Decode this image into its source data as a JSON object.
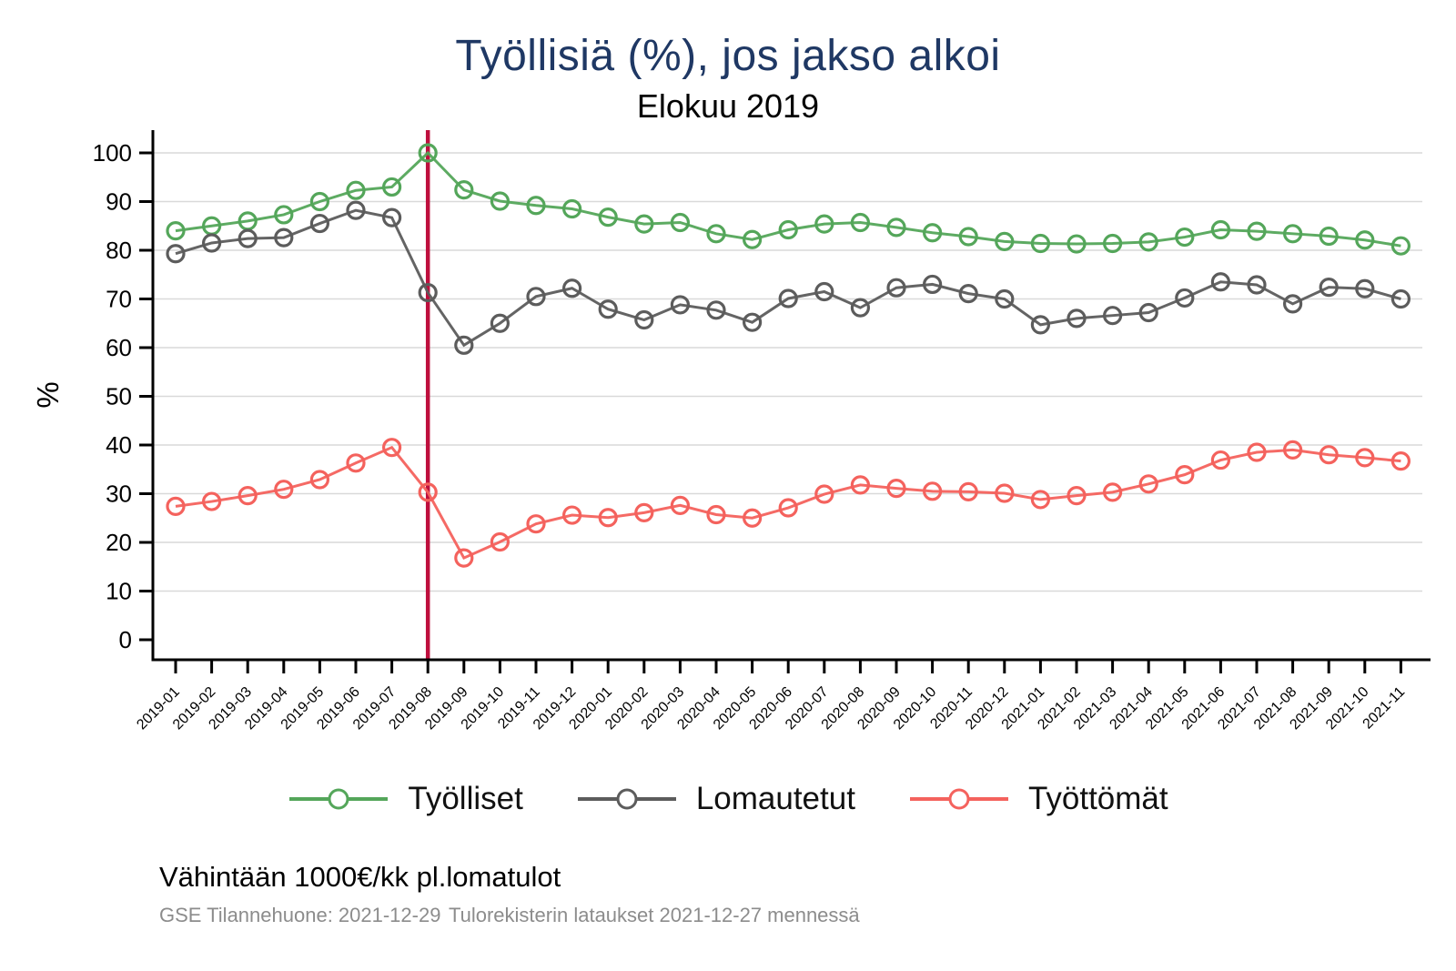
{
  "title": "Työllisiä (%), jos jakso alkoi",
  "subtitle": "Elokuu 2019",
  "footer": {
    "note": "Vähintään 1000€/kk pl.lomatulot",
    "source_left": "GSE Tilannehuone: 2021-12-29",
    "source_right": "Tulorekisterin lataukset 2021-12-27 mennessä"
  },
  "chart_data": {
    "type": "line",
    "title": "Työllisiä (%), jos jakso alkoi",
    "subtitle": "Elokuu 2019",
    "xlabel": "",
    "ylabel": "%",
    "ylim": [
      0,
      100
    ],
    "yticks": [
      0,
      10,
      20,
      30,
      40,
      50,
      60,
      70,
      80,
      90,
      100
    ],
    "grid": "horizontal",
    "legend_position": "bottom",
    "marker": "hollow-circle",
    "vline": {
      "at": "2019-08",
      "color": "#be0f3d"
    },
    "categories": [
      "2019-01",
      "2019-02",
      "2019-03",
      "2019-04",
      "2019-05",
      "2019-06",
      "2019-07",
      "2019-08",
      "2019-09",
      "2019-10",
      "2019-11",
      "2019-12",
      "2020-01",
      "2020-02",
      "2020-03",
      "2020-04",
      "2020-05",
      "2020-06",
      "2020-07",
      "2020-08",
      "2020-09",
      "2020-10",
      "2020-11",
      "2020-12",
      "2021-01",
      "2021-02",
      "2021-03",
      "2021-04",
      "2021-05",
      "2021-06",
      "2021-07",
      "2021-08",
      "2021-09",
      "2021-10",
      "2021-11"
    ],
    "series": [
      {
        "name": "Työlliset",
        "color": "#54a65a",
        "values": [
          84.0,
          85.0,
          86.0,
          87.3,
          90.0,
          92.3,
          93.0,
          100.0,
          92.4,
          90.1,
          89.2,
          88.5,
          86.8,
          85.4,
          85.7,
          83.4,
          82.2,
          84.2,
          85.4,
          85.7,
          84.7,
          83.6,
          82.8,
          81.8,
          81.4,
          81.3,
          81.4,
          81.7,
          82.7,
          84.2,
          83.9,
          83.4,
          82.9,
          82.1,
          80.9
        ]
      },
      {
        "name": "Lomautetut",
        "color": "#5c5c5c",
        "values": [
          79.3,
          81.5,
          82.4,
          82.6,
          85.5,
          88.2,
          86.7,
          71.3,
          60.5,
          65.0,
          70.5,
          72.2,
          67.9,
          65.7,
          68.8,
          67.7,
          65.2,
          70.1,
          71.5,
          68.2,
          72.3,
          73.0,
          71.1,
          70.0,
          64.7,
          66.0,
          66.6,
          67.2,
          70.2,
          73.5,
          72.9,
          69.0,
          72.4,
          72.1,
          70.0
        ]
      },
      {
        "name": "Työttömät",
        "color": "#f4625d",
        "values": [
          27.4,
          28.4,
          29.6,
          30.9,
          32.9,
          36.3,
          39.5,
          30.3,
          16.8,
          20.1,
          23.8,
          25.6,
          25.1,
          26.1,
          27.6,
          25.7,
          25.0,
          27.1,
          29.9,
          31.8,
          31.1,
          30.5,
          30.4,
          30.1,
          28.8,
          29.6,
          30.3,
          32.0,
          33.9,
          36.9,
          38.5,
          39.0,
          38.0,
          37.4,
          36.7
        ]
      }
    ]
  }
}
